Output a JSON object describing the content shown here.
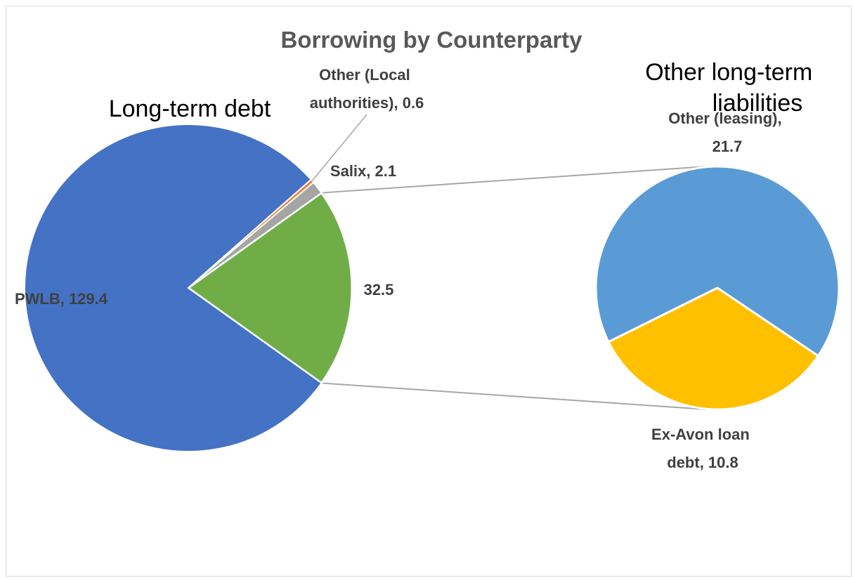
{
  "chart_data": {
    "type": "pie",
    "subtype": "pie-of-pie",
    "title": "Borrowing by Counterparty",
    "groups": [
      {
        "name_lines": [
          "Long-term debt"
        ]
      },
      {
        "name_lines": [
          "Other long-term",
          "liabilities"
        ]
      }
    ],
    "slices": [
      {
        "label_lines": [
          "PWLB, 129.4"
        ],
        "value": 129.4,
        "pie": "primary",
        "color": "#4472C4"
      },
      {
        "label_lines": [
          "Other (Local",
          "authorities), 0.6"
        ],
        "value": 0.6,
        "pie": "primary",
        "color": "#ED7D31"
      },
      {
        "label_lines": [
          "Salix, 2.1"
        ],
        "value": 2.1,
        "pie": "primary",
        "color": "#A5A5A5"
      },
      {
        "label_lines": [
          "Other (leasing),",
          "21.7"
        ],
        "value": 21.7,
        "pie": "secondary",
        "color": "#5B9BD5"
      },
      {
        "label_lines": [
          "Ex-Avon loan",
          "debt, 10.8"
        ],
        "value": 10.8,
        "pie": "secondary",
        "color": "#FFC000"
      }
    ],
    "combined_slice": {
      "label": "32.5",
      "value": 32.5,
      "color": "#70AD47"
    },
    "legend": "none"
  }
}
